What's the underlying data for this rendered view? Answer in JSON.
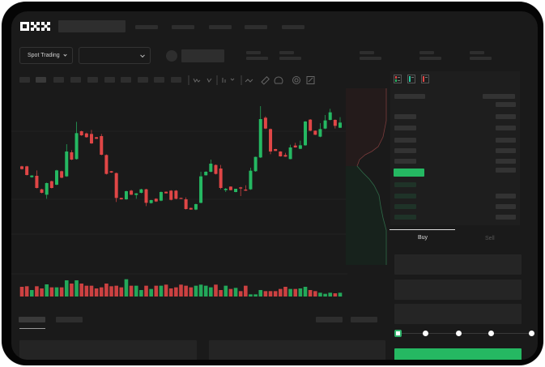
{
  "brand": {
    "logo_text": "OKX"
  },
  "controls": {
    "market_type": "Spot Trading",
    "pair_select": ""
  },
  "colors": {
    "up": "#25b862",
    "down": "#e04646",
    "background": "#1a1a1a",
    "panel": "#1e1e1e",
    "buy_button": "#25b862"
  },
  "toolbar_icons": [
    "candle-type-icon",
    "indicator-icon",
    "chart-type-icon",
    "line-icon",
    "ruler-icon",
    "measure-icon",
    "target-icon",
    "fullscreen-icon"
  ],
  "orderbook_icons": [
    "book-both-icon",
    "book-buy-icon",
    "book-sell-icon"
  ],
  "trade": {
    "buy_tab": "Buy",
    "sell_tab": "Sell",
    "active_tab": "Buy",
    "slider_percent": 0
  },
  "chart_data": {
    "type": "candlestick",
    "candles": [
      [
        250,
        252,
        238,
        240
      ],
      [
        250,
        252,
        216,
        218
      ],
      [
        210,
        217,
        208,
        216
      ],
      [
        215,
        235,
        168,
        170
      ],
      [
        165,
        167,
        150,
        152
      ],
      [
        145,
        190,
        130,
        188
      ],
      [
        195,
        197,
        168,
        170
      ],
      [
        182,
        237,
        180,
        235
      ],
      [
        232,
        234,
        206,
        208
      ],
      [
        213,
        332,
        211,
        305
      ],
      [
        302,
        310,
        273,
        275
      ],
      [
        277,
        415,
        275,
        373
      ],
      [
        380,
        382,
        363,
        365
      ],
      [
        372,
        375,
        356,
        358
      ],
      [
        370,
        385,
        333,
        335
      ],
      [
        358,
        359,
        352,
        352
      ],
      [
        362,
        370,
        291,
        293
      ],
      [
        292,
        294,
        220,
        222
      ],
      [
        232,
        233,
        226,
        227
      ],
      [
        225,
        227,
        118,
        133
      ],
      [
        133,
        134,
        127,
        128
      ],
      [
        128,
        160,
        126,
        158
      ],
      [
        160,
        163,
        144,
        145
      ],
      [
        144,
        151,
        130,
        150
      ],
      [
        152,
        167,
        150,
        165
      ],
      [
        165,
        167,
        103,
        115
      ],
      [
        114,
        126,
        112,
        125
      ],
      [
        130,
        132,
        118,
        120
      ],
      [
        123,
        157,
        121,
        155
      ],
      [
        156,
        157,
        150,
        150
      ],
      [
        160,
        162,
        124,
        126
      ],
      [
        160,
        162,
        128,
        130
      ],
      [
        133,
        134,
        130,
        130
      ],
      [
        128,
        135,
        90,
        92
      ],
      [
        96,
        97,
        90,
        90
      ],
      [
        90,
        112,
        88,
        110
      ],
      [
        115,
        230,
        113,
        213
      ],
      [
        217,
        232,
        216,
        230
      ],
      [
        230,
        275,
        228,
        260
      ],
      [
        255,
        257,
        220,
        222
      ],
      [
        242,
        255,
        165,
        170
      ],
      [
        162,
        170,
        155,
        167
      ],
      [
        175,
        176,
        161,
        162
      ],
      [
        155,
        167,
        154,
        167
      ],
      [
        172,
        174,
        140,
        168
      ],
      [
        164,
        180,
        159,
        160
      ],
      [
        165,
        245,
        163,
        234
      ],
      [
        232,
        286,
        230,
        285
      ],
      [
        283,
        473,
        281,
        425
      ],
      [
        430,
        435,
        388,
        390
      ],
      [
        388,
        390,
        295,
        305
      ],
      [
        314,
        315,
        307,
        307
      ],
      [
        305,
        306,
        286,
        287
      ],
      [
        292,
        300,
        285,
        286
      ],
      [
        277,
        330,
        276,
        320
      ],
      [
        327,
        337,
        319,
        320
      ],
      [
        315,
        345,
        314,
        328
      ],
      [
        328,
        418,
        326,
        416
      ],
      [
        423,
        425,
        380,
        382
      ],
      [
        382,
        383,
        366,
        367
      ],
      [
        360,
        410,
        358,
        388
      ],
      [
        390,
        440,
        388,
        420
      ],
      [
        422,
        463,
        420,
        450
      ],
      [
        422,
        424,
        390,
        400
      ],
      [
        393,
        432,
        392,
        412
      ]
    ],
    "volume": [
      36,
      38,
      24,
      38,
      30,
      45,
      34,
      34,
      34,
      60,
      48,
      60,
      48,
      40,
      40,
      30,
      34,
      48,
      38,
      40,
      34,
      64,
      40,
      40,
      24,
      40,
      28,
      40,
      40,
      44,
      30,
      34,
      44,
      40,
      34,
      40,
      44,
      40,
      34,
      44,
      24,
      40,
      28,
      32,
      20,
      40,
      8,
      8,
      24,
      20,
      20,
      20,
      28,
      36,
      28,
      28,
      30,
      36,
      24,
      20,
      14,
      10,
      14,
      12,
      14
    ],
    "grid": true
  }
}
